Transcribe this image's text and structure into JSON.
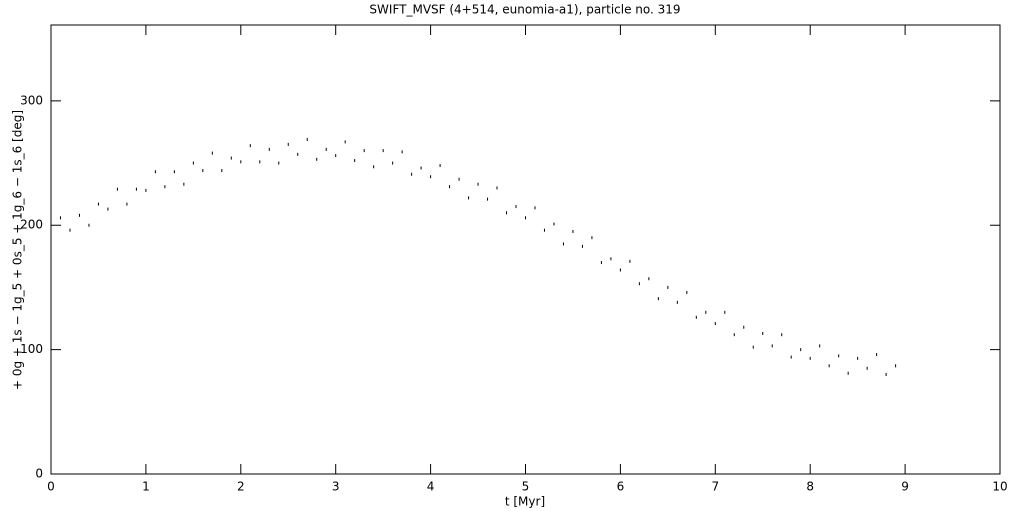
{
  "chart_data": {
    "type": "scatter",
    "title": "SWIFT_MVSF (4+514, eunomia-a1), particle no. 319",
    "x_label": "t [Myr]",
    "y_label": "+ 0g + 1s − 1g_5 + 0s_5 + 1g_6 − 1s_6 [deg]",
    "color": "#000000",
    "xlim": [
      0,
      10
    ],
    "xticks": [
      0,
      1,
      2,
      3,
      4,
      5,
      6,
      7,
      8,
      9,
      10
    ],
    "ylim": [
      0,
      361
    ],
    "yticks": [
      0,
      100,
      200,
      300
    ],
    "x": [
      0.1,
      0.2,
      0.3,
      0.4,
      0.5,
      0.6,
      0.7,
      0.8,
      0.9,
      1.0,
      1.1,
      1.2,
      1.3,
      1.4,
      1.5,
      1.6,
      1.7,
      1.8,
      1.9,
      2.0,
      2.1,
      2.2,
      2.3,
      2.4,
      2.5,
      2.6,
      2.7,
      2.8,
      2.9,
      3.0,
      3.1,
      3.2,
      3.3,
      3.4,
      3.5,
      3.6,
      3.7,
      3.8,
      3.9,
      4.0,
      4.1,
      4.2,
      4.3,
      4.4,
      4.5,
      4.6,
      4.7,
      4.8,
      4.9,
      5.0,
      5.1,
      5.2,
      5.3,
      5.4,
      5.5,
      5.6,
      5.7,
      5.8,
      5.9,
      6.0,
      6.1,
      6.2,
      6.3,
      6.4,
      6.5,
      6.6,
      6.7,
      6.8,
      6.9,
      7.0,
      7.1,
      7.2,
      7.3,
      7.4,
      7.5,
      7.6,
      7.7,
      7.8,
      7.9,
      8.0,
      8.1,
      8.2,
      8.3,
      8.4,
      8.5,
      8.6,
      8.7,
      8.8,
      8.9
    ],
    "y": [
      206,
      196,
      208,
      200,
      217,
      213,
      229,
      217,
      229,
      228,
      243,
      231,
      243,
      233,
      250,
      244,
      258,
      244,
      254,
      251,
      264,
      251,
      261,
      250,
      265,
      257,
      269,
      253,
      261,
      256,
      267,
      252,
      260,
      247,
      260,
      250,
      259,
      241,
      246,
      239,
      248,
      231,
      237,
      222,
      233,
      221,
      230,
      210,
      215,
      206,
      214,
      196,
      201,
      185,
      195,
      183,
      190,
      170,
      173,
      164,
      171,
      153,
      157,
      141,
      150,
      138,
      146,
      126,
      130,
      121,
      130,
      112,
      118,
      102,
      113,
      103,
      112,
      94,
      100,
      93,
      103,
      87,
      95,
      81,
      93,
      85,
      96,
      80,
      87
    ]
  }
}
